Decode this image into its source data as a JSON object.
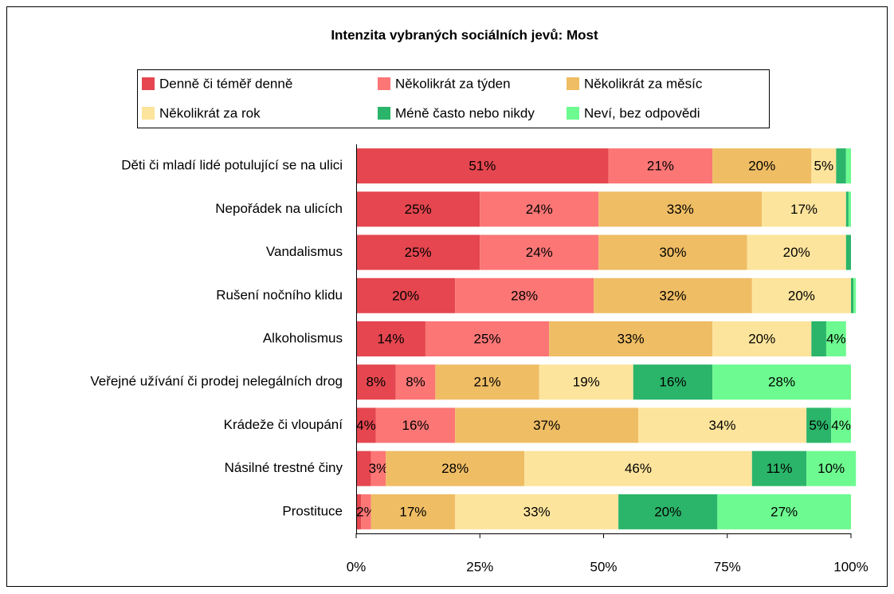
{
  "chart_data": {
    "type": "stacked-bar-horizontal",
    "title": "Intenzita vybraných sociálních jevů: Most",
    "categories": [
      "Děti či mladí lidé potulující se na ulici",
      "Nepořádek na ulicích",
      "Vandalismus",
      "Rušení nočního klidu",
      "Alkoholismus",
      "Veřejné užívání či prodej nelegálních drog",
      "Krádeže či vloupání",
      "Násilné trestné činy",
      "Prostituce"
    ],
    "series": [
      {
        "name": "Denně či téměř denně",
        "color": "#e5464f",
        "values": [
          51,
          25,
          25,
          20,
          14,
          8,
          4,
          3,
          1
        ],
        "value_labels": [
          "51%",
          "25%",
          "25%",
          "20%",
          "14%",
          "8%",
          "4%",
          null,
          null
        ]
      },
      {
        "name": "Několikrát za týden",
        "color": "#fc7676",
        "values": [
          21,
          24,
          24,
          28,
          25,
          8,
          16,
          3,
          2
        ],
        "value_labels": [
          "21%",
          "24%",
          "24%",
          "28%",
          "25%",
          "8%",
          "16%",
          "3%",
          "2%"
        ]
      },
      {
        "name": "Několikrát za měsíc",
        "color": "#efbd64",
        "values": [
          20,
          33,
          30,
          32,
          33,
          21,
          37,
          28,
          17
        ],
        "value_labels": [
          "20%",
          "33%",
          "30%",
          "32%",
          "33%",
          "21%",
          "37%",
          "28%",
          "17%"
        ]
      },
      {
        "name": "Několikrát za rok",
        "color": "#fde49c",
        "values": [
          5,
          17,
          20,
          20,
          20,
          19,
          34,
          46,
          33
        ],
        "value_labels": [
          "5%",
          "17%",
          "20%",
          "20%",
          "20%",
          "19%",
          "34%",
          "46%",
          "33%"
        ]
      },
      {
        "name": "Méně často nebo nikdy",
        "color": "#2bb56a",
        "values": [
          2,
          0.5,
          1,
          0.5,
          3,
          16,
          5,
          11,
          20
        ],
        "value_labels": [
          null,
          null,
          null,
          null,
          null,
          "16%",
          "5%",
          "11%",
          "20%"
        ]
      },
      {
        "name": "Neví, bez odpovědi",
        "color": "#6dfa90",
        "values": [
          1,
          0.5,
          0,
          0.5,
          4,
          28,
          4,
          10,
          27
        ],
        "value_labels": [
          null,
          null,
          null,
          null,
          "4%",
          "28%",
          "4%",
          "10%",
          "27%"
        ]
      }
    ],
    "xlim": [
      0,
      100
    ],
    "xticks": [
      {
        "value": 0,
        "label": "0%"
      },
      {
        "value": 25,
        "label": "25%"
      },
      {
        "value": 50,
        "label": "50%"
      },
      {
        "value": 75,
        "label": "75%"
      },
      {
        "value": 100,
        "label": "100%"
      }
    ]
  }
}
